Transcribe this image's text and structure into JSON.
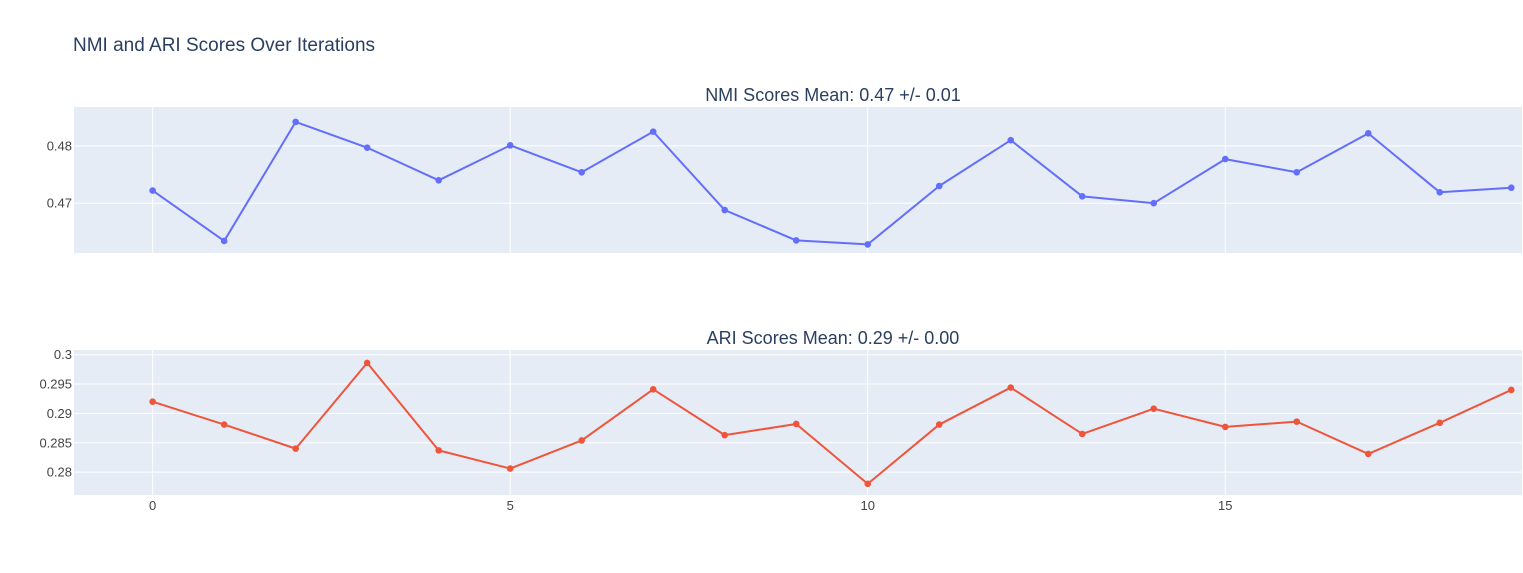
{
  "figure": {
    "title": "NMI and ARI Scores Over Iterations",
    "colors": {
      "plot_background": "#e5ecf6",
      "grid": "#ffffff",
      "title_text": "#2a3f5f",
      "tick_text": "#444444",
      "nmi_series": "#636efa",
      "ari_series": "#ef553b"
    }
  },
  "chart_data": [
    {
      "type": "line",
      "title": "NMI Scores Mean: 0.47 +/- 0.01",
      "xlabel": "",
      "ylabel": "",
      "grid": true,
      "x": [
        0,
        1,
        2,
        3,
        4,
        5,
        6,
        7,
        8,
        9,
        10,
        11,
        12,
        13,
        14,
        15,
        16,
        17,
        18,
        19
      ],
      "series": [
        {
          "color": "#636efa",
          "values": [
            0.4722,
            0.4634,
            0.4842,
            0.4797,
            0.474,
            0.4801,
            0.4754,
            0.4825,
            0.4688,
            0.4635,
            0.4628,
            0.473,
            0.481,
            0.4712,
            0.47,
            0.4777,
            0.4754,
            0.4822,
            0.4719,
            0.4727
          ]
        }
      ],
      "xlim": [
        -1.1,
        19.15
      ],
      "ylim": [
        0.4613,
        0.4868
      ],
      "xticks": [],
      "yticks": [
        0.47,
        0.48
      ],
      "ytick_labels": [
        "0.47",
        "0.48"
      ]
    },
    {
      "type": "line",
      "title": "ARI Scores Mean: 0.29 +/- 0.00",
      "xlabel": "",
      "ylabel": "",
      "grid": true,
      "x": [
        0,
        1,
        2,
        3,
        4,
        5,
        6,
        7,
        8,
        9,
        10,
        11,
        12,
        13,
        14,
        15,
        16,
        17,
        18,
        19
      ],
      "series": [
        {
          "color": "#ef553b",
          "values": [
            0.292,
            0.2881,
            0.284,
            0.2986,
            0.2837,
            0.2806,
            0.2854,
            0.2941,
            0.2863,
            0.2882,
            0.278,
            0.2881,
            0.2944,
            0.2865,
            0.2908,
            0.2877,
            0.2886,
            0.2831,
            0.2884,
            0.294
          ]
        }
      ],
      "xlim": [
        -1.1,
        19.15
      ],
      "ylim": [
        0.2761,
        0.3008
      ],
      "xticks": [
        0,
        5,
        10,
        15
      ],
      "xtick_labels": [
        "0",
        "5",
        "10",
        "15"
      ],
      "yticks": [
        0.28,
        0.285,
        0.29,
        0.295,
        0.3
      ],
      "ytick_labels": [
        "0.28",
        "0.285",
        "0.29",
        "0.295",
        "0.3"
      ]
    }
  ]
}
